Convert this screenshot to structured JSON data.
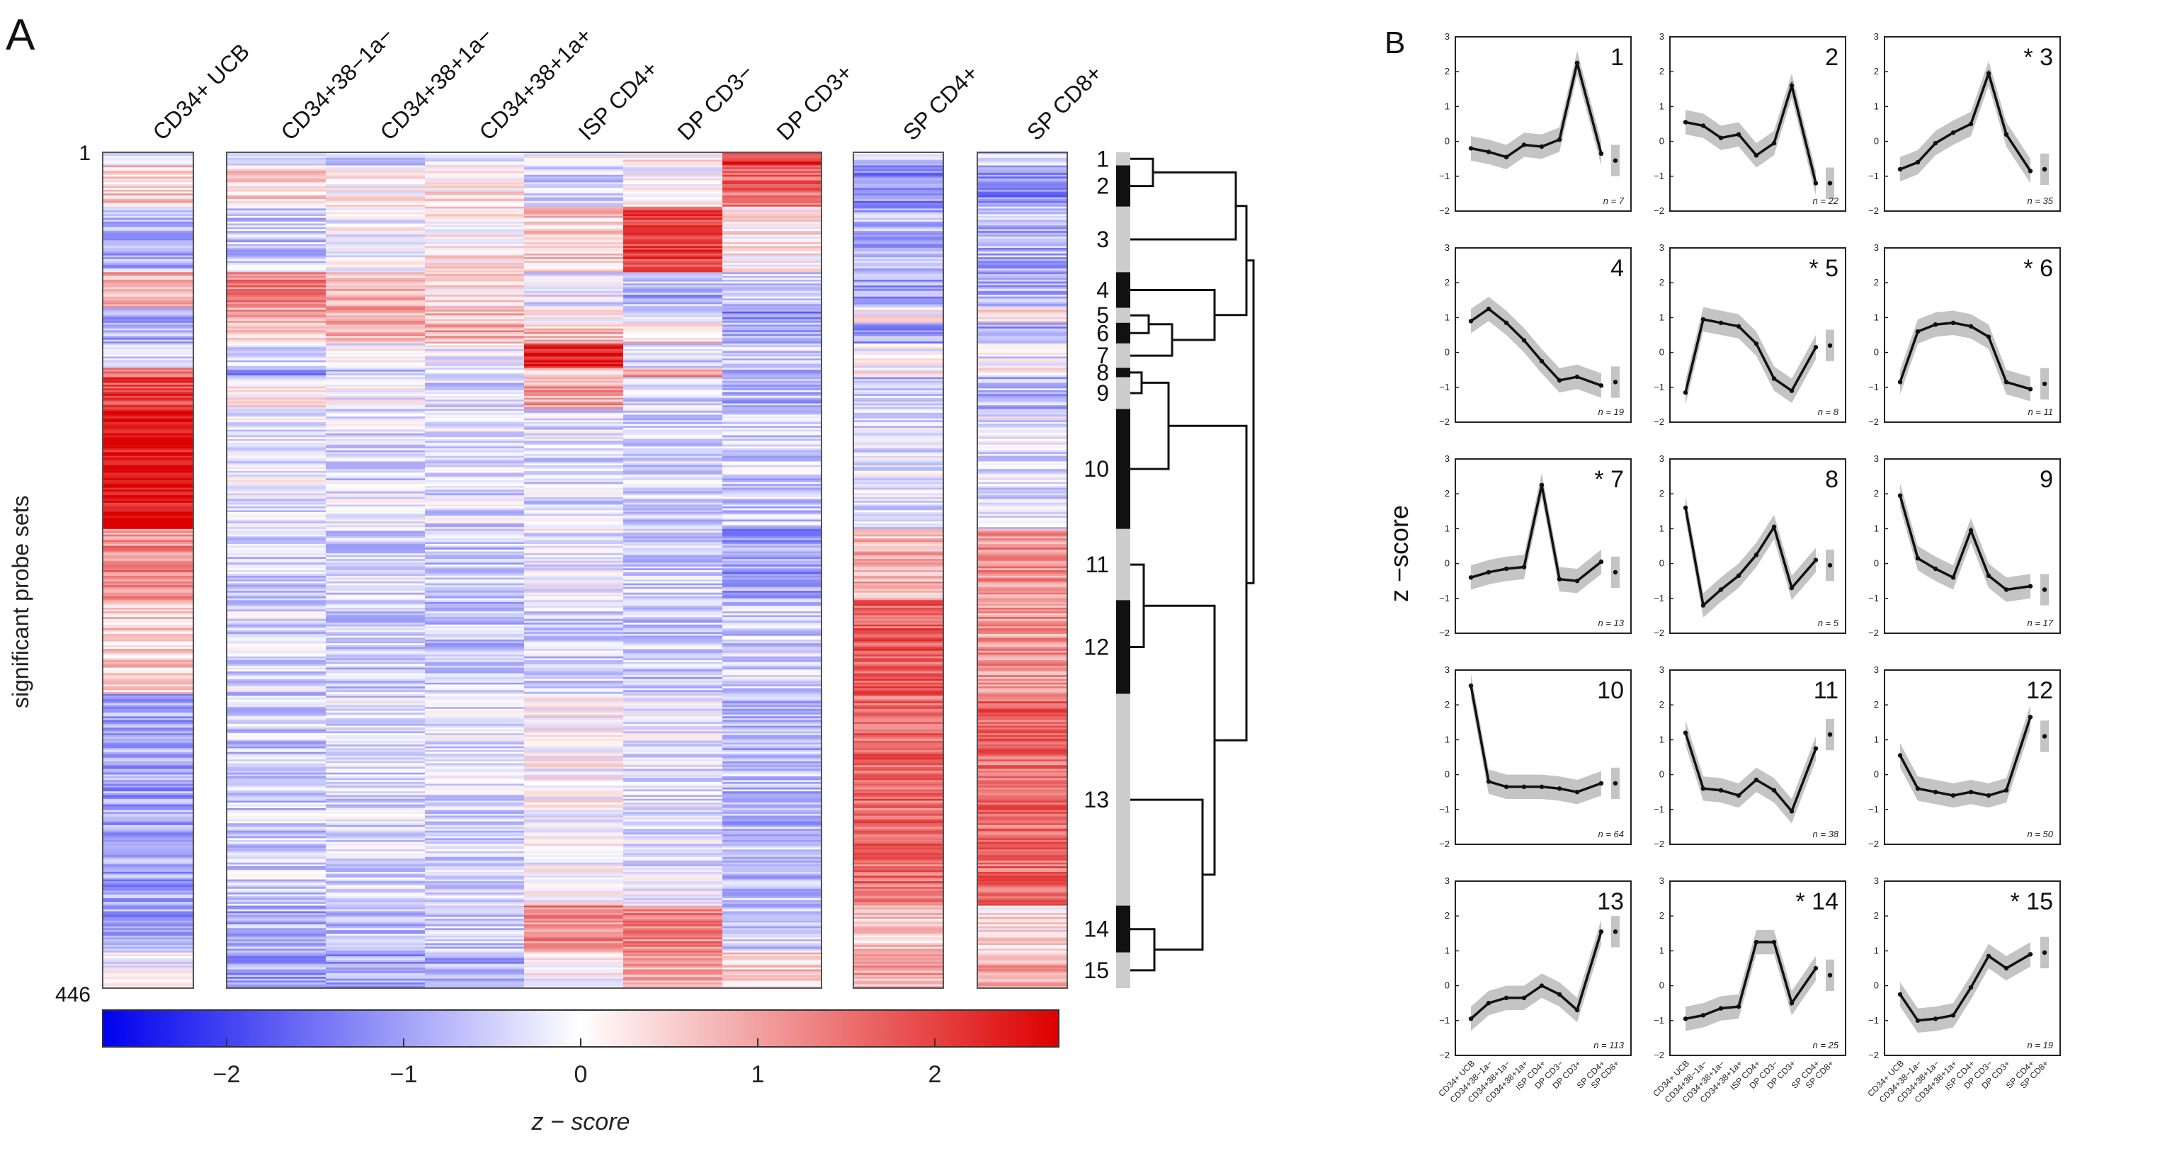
{
  "panel_a": {
    "label": "A",
    "columns": [
      "CD34+ UCB",
      "CD34+38−1a−",
      "CD34+38+1a−",
      "CD34+38+1a+",
      "ISP CD4+",
      "DP CD3−",
      "DP CD3+",
      "SP CD4+",
      "SP CD8+"
    ],
    "ylabel": "significant probe sets",
    "row_start": "1",
    "row_end": "446",
    "cluster_numbers": [
      "1",
      "2",
      "3",
      "4",
      "5",
      "6",
      "7",
      "8",
      "9",
      "10",
      "11",
      "12",
      "13",
      "14",
      "15"
    ],
    "colorbar": {
      "ticks": [
        "−2",
        "−1",
        "0",
        "1",
        "2"
      ],
      "label": "z − score",
      "colors": {
        "low": "#0000ee",
        "mid": "#ffffff",
        "high": "#dd0000"
      }
    }
  },
  "panel_b": {
    "label": "B",
    "ylabel": "z −score",
    "x_tick_labels": [
      "CD34+ UCB",
      "CD34+38−1a−",
      "CD34+38+1a−",
      "CD34+38+1a+",
      "ISP CD4+",
      "DP CD3−",
      "DP CD3+",
      "SP CD4+",
      "SP CD8+"
    ],
    "y_ticks": [
      "3",
      "2",
      "1",
      "0",
      "−1",
      "−2"
    ]
  },
  "chart_data": [
    {
      "type": "heatmap",
      "title": "",
      "xlabel": "",
      "ylabel": "significant probe sets",
      "columns": [
        "CD34+ UCB",
        "CD34+38−1a−",
        "CD34+38+1a−",
        "CD34+38+1a+",
        "ISP CD4+",
        "DP CD3−",
        "DP CD3+",
        "SP CD4+",
        "SP CD8+"
      ],
      "rows": 446,
      "value_range": [
        -2.7,
        2.7
      ],
      "colorbar_ticks": [
        -2,
        -1,
        0,
        1,
        2
      ],
      "clusters": [
        {
          "id": 1,
          "n": 7
        },
        {
          "id": 2,
          "n": 22
        },
        {
          "id": 3,
          "n": 35
        },
        {
          "id": 4,
          "n": 19
        },
        {
          "id": 5,
          "n": 8
        },
        {
          "id": 6,
          "n": 11
        },
        {
          "id": 7,
          "n": 13
        },
        {
          "id": 8,
          "n": 5
        },
        {
          "id": 9,
          "n": 17
        },
        {
          "id": 10,
          "n": 64
        },
        {
          "id": 11,
          "n": 38
        },
        {
          "id": 12,
          "n": 50
        },
        {
          "id": 13,
          "n": 113
        },
        {
          "id": 14,
          "n": 25
        },
        {
          "id": 15,
          "n": 19
        }
      ]
    },
    {
      "type": "line",
      "ylabel": "z −score",
      "ylim": [
        -2,
        3
      ],
      "categories": [
        "CD34+ UCB",
        "CD34+38−1a−",
        "CD34+38+1a−",
        "CD34+38+1a+",
        "ISP CD4+",
        "DP CD3−",
        "DP CD3+",
        "SP CD4+",
        "SP CD8+"
      ],
      "series": [
        {
          "name": "1",
          "starred": false,
          "n": "n = 7",
          "values": [
            -0.2,
            -0.3,
            -0.45,
            -0.1,
            -0.15,
            0.05,
            2.25,
            -0.35,
            -0.55
          ]
        },
        {
          "name": "2",
          "starred": false,
          "n": "n = 22",
          "values": [
            0.55,
            0.45,
            0.1,
            0.2,
            -0.4,
            -0.05,
            1.6,
            -1.2,
            -1.2
          ]
        },
        {
          "name": "3",
          "starred": true,
          "n": "n = 35",
          "values": [
            -0.8,
            -0.6,
            -0.05,
            0.25,
            0.5,
            1.95,
            0.2,
            -0.85,
            -0.8
          ]
        },
        {
          "name": "4",
          "starred": false,
          "n": "n = 19",
          "values": [
            0.9,
            1.25,
            0.85,
            0.35,
            -0.25,
            -0.8,
            -0.7,
            -0.95,
            -0.85
          ]
        },
        {
          "name": "5",
          "starred": true,
          "n": "n = 8",
          "values": [
            -1.15,
            0.95,
            0.85,
            0.75,
            0.25,
            -0.75,
            -1.1,
            0.15,
            0.2
          ]
        },
        {
          "name": "6",
          "starred": true,
          "n": "n = 11",
          "values": [
            -0.85,
            0.6,
            0.8,
            0.85,
            0.75,
            0.45,
            -0.85,
            -1.05,
            -0.9
          ]
        },
        {
          "name": "7",
          "starred": true,
          "n": "n = 13",
          "values": [
            -0.4,
            -0.25,
            -0.15,
            -0.1,
            2.25,
            -0.45,
            -0.5,
            0.05,
            -0.25
          ]
        },
        {
          "name": "8",
          "starred": false,
          "n": "n = 5",
          "values": [
            1.6,
            -1.2,
            -0.75,
            -0.35,
            0.25,
            1.05,
            -0.7,
            0.1,
            -0.05
          ]
        },
        {
          "name": "9",
          "starred": false,
          "n": "n = 17",
          "values": [
            1.95,
            0.15,
            -0.15,
            -0.4,
            0.95,
            -0.35,
            -0.75,
            -0.65,
            -0.75
          ]
        },
        {
          "name": "10",
          "starred": false,
          "n": "n = 64",
          "values": [
            2.55,
            -0.2,
            -0.35,
            -0.35,
            -0.35,
            -0.4,
            -0.5,
            -0.25,
            -0.25
          ]
        },
        {
          "name": "11",
          "starred": false,
          "n": "n = 38",
          "values": [
            1.2,
            -0.4,
            -0.45,
            -0.6,
            -0.15,
            -0.45,
            -1.05,
            0.75,
            1.15
          ]
        },
        {
          "name": "12",
          "starred": false,
          "n": "n = 50",
          "values": [
            0.55,
            -0.4,
            -0.5,
            -0.6,
            -0.5,
            -0.6,
            -0.45,
            1.65,
            1.1
          ]
        },
        {
          "name": "13",
          "starred": false,
          "n": "n = 113",
          "values": [
            -0.95,
            -0.5,
            -0.35,
            -0.35,
            0.0,
            -0.25,
            -0.7,
            1.55,
            1.55
          ]
        },
        {
          "name": "14",
          "starred": true,
          "n": "n = 25",
          "values": [
            -0.95,
            -0.85,
            -0.65,
            -0.6,
            1.25,
            1.25,
            -0.5,
            0.5,
            0.3
          ]
        },
        {
          "name": "15",
          "starred": true,
          "n": "n = 19",
          "values": [
            -0.25,
            -1.0,
            -0.95,
            -0.85,
            -0.05,
            0.85,
            0.5,
            0.9,
            0.95
          ]
        }
      ]
    }
  ]
}
